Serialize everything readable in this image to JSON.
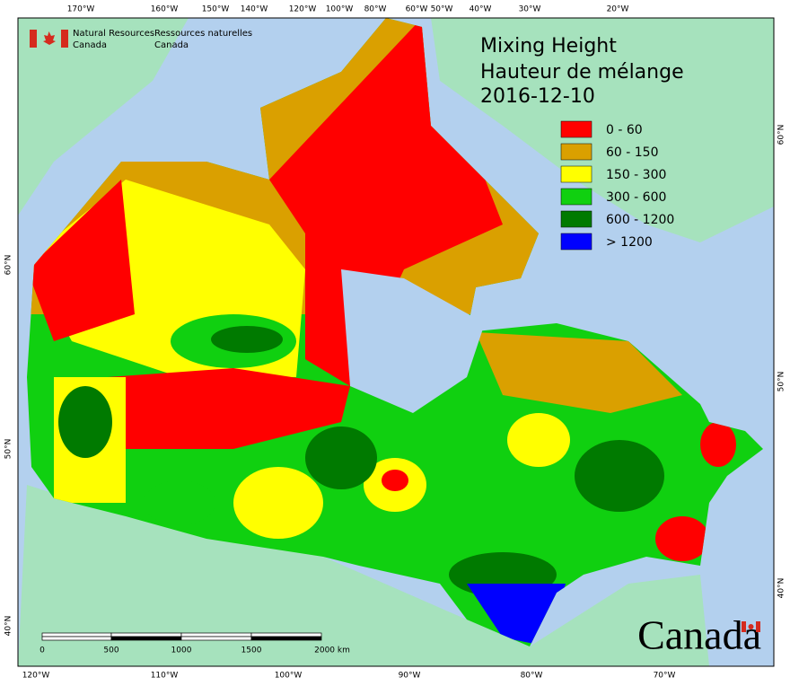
{
  "header": {
    "org_en_1": "Natural Resources",
    "org_en_2": "Canada",
    "org_fr_1": "Ressources naturelles",
    "org_fr_2": "Canada"
  },
  "title": {
    "en": "Mixing Height",
    "fr": "Hauteur de mélange",
    "date": "2016-12-10"
  },
  "legend": [
    {
      "label": "0 - 60",
      "color": "#ff0000"
    },
    {
      "label": "60 - 150",
      "color": "#daa000"
    },
    {
      "label": "150 - 300",
      "color": "#ffff00"
    },
    {
      "label": "300 - 600",
      "color": "#10d010"
    },
    {
      "label": "600 - 1200",
      "color": "#007a00"
    },
    {
      "label": "> 1200",
      "color": "#0000ff"
    }
  ],
  "top_labels": [
    "170°W",
    "160°W",
    "150°W",
    "140°W",
    "120°W",
    "100°W",
    "80°W",
    "60°W",
    "50°W",
    "40°W",
    "30°W",
    "20°W"
  ],
  "bottom_labels": [
    "120°W",
    "110°W",
    "100°W",
    "90°W",
    "80°W",
    "70°W"
  ],
  "left_labels": [
    "60°N",
    "50°N",
    "40°N"
  ],
  "right_labels": [
    "60°N",
    "50°N",
    "40°N"
  ],
  "scale_bar": {
    "labels": [
      "0",
      "500",
      "1000",
      "1500",
      "2000 km"
    ]
  },
  "wordmark": "Canada"
}
